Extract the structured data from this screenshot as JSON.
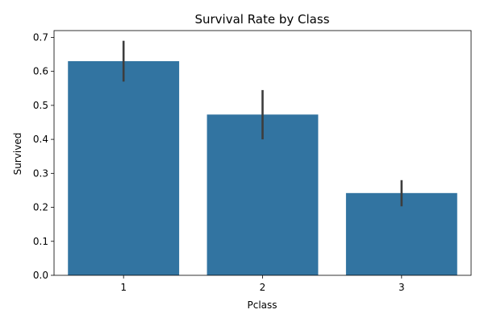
{
  "chart_data": {
    "type": "bar",
    "title": "Survival Rate by Class",
    "xlabel": "Pclass",
    "ylabel": "Survived",
    "categories": [
      "1",
      "2",
      "3"
    ],
    "values": [
      0.63,
      0.473,
      0.242
    ],
    "error_low": [
      0.57,
      0.4,
      0.203
    ],
    "error_high": [
      0.69,
      0.545,
      0.28
    ],
    "ylim": [
      0,
      0.72
    ],
    "yticks": [
      0.0,
      0.1,
      0.2,
      0.3,
      0.4,
      0.5,
      0.6,
      0.7
    ],
    "ytick_labels": [
      "0.0",
      "0.1",
      "0.2",
      "0.3",
      "0.4",
      "0.5",
      "0.6",
      "0.7"
    ],
    "grid": false,
    "bar_color": "#3274a1",
    "errorbar_color": "#3d3d3d"
  }
}
